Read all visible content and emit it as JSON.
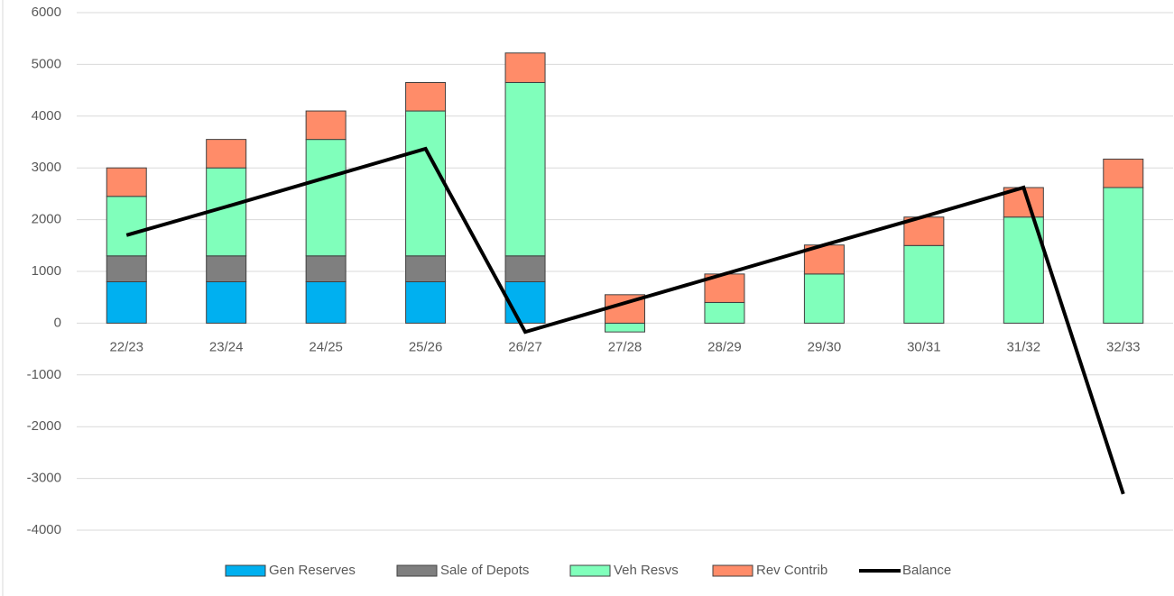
{
  "chart_data": {
    "type": "stacked-bar-line",
    "categories": [
      "22/23",
      "23/24",
      "24/25",
      "25/26",
      "26/27",
      "27/28",
      "28/29",
      "29/30",
      "30/31",
      "31/32",
      "32/33"
    ],
    "series": [
      {
        "name": "Gen Reserves",
        "color": "#00b0f0",
        "values": [
          800,
          800,
          800,
          800,
          800,
          0,
          0,
          0,
          0,
          0,
          0
        ]
      },
      {
        "name": "Sale of Depots",
        "color": "#7f7f7f",
        "values": [
          500,
          500,
          500,
          500,
          500,
          0,
          0,
          0,
          0,
          0,
          0
        ]
      },
      {
        "name": "Veh Resvs",
        "color": "#80ffbb",
        "values": [
          1150,
          1700,
          2250,
          2800,
          3350,
          -170,
          400,
          950,
          1500,
          2050,
          2620
        ]
      },
      {
        "name": "Rev Contrib",
        "color": "#ff8c69",
        "values": [
          550,
          550,
          550,
          550,
          570,
          550,
          550,
          560,
          550,
          570,
          550
        ]
      },
      {
        "name": "Balance",
        "type": "line",
        "color": "#000000",
        "values": [
          1700,
          2250,
          2810,
          3370,
          -170,
          390,
          950,
          1510,
          2060,
          2620,
          -3300
        ]
      }
    ],
    "ylim": [
      -4000,
      6000
    ],
    "yticks": [
      -4000,
      -3000,
      -2000,
      -1000,
      0,
      1000,
      2000,
      3000,
      4000,
      5000,
      6000
    ],
    "grid": true,
    "legend": "bottom"
  }
}
